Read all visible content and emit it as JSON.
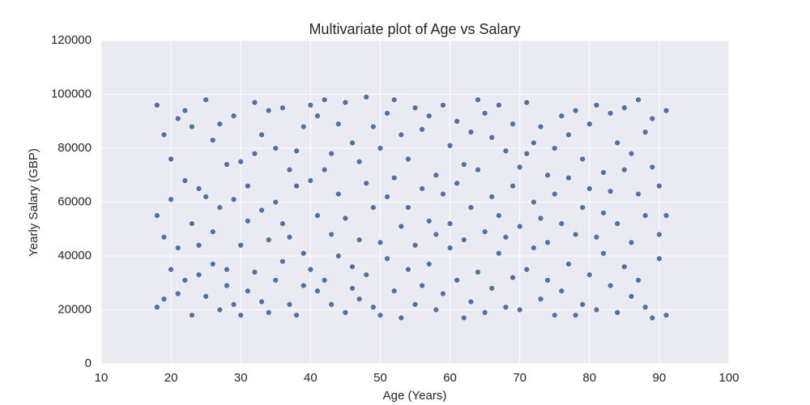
{
  "chart_data": {
    "type": "scatter",
    "title": "Multivariate plot of Age vs Salary",
    "xlabel": "Age (Years)",
    "ylabel": "Yearly Salary (GBP)",
    "xlim": [
      10,
      100
    ],
    "xticks": [
      10,
      20,
      30,
      40,
      50,
      60,
      70,
      80,
      90,
      100
    ],
    "ylim": [
      0,
      120000
    ],
    "yticks": [
      0,
      20000,
      40000,
      60000,
      80000,
      100000,
      120000
    ],
    "grid": true,
    "color": "#4c72b0",
    "x": [
      18,
      18,
      18,
      19,
      19,
      19,
      20,
      20,
      20,
      21,
      21,
      21,
      22,
      22,
      22,
      23,
      23,
      23,
      24,
      24,
      24,
      25,
      25,
      25,
      26,
      26,
      26,
      27,
      27,
      27,
      28,
      28,
      28,
      29,
      29,
      29,
      30,
      30,
      30,
      31,
      31,
      31,
      32,
      32,
      32,
      33,
      33,
      33,
      34,
      34,
      34,
      35,
      35,
      35,
      36,
      36,
      36,
      37,
      37,
      37,
      38,
      38,
      38,
      39,
      39,
      39,
      40,
      40,
      40,
      41,
      41,
      41,
      42,
      42,
      42,
      43,
      43,
      43,
      44,
      44,
      44,
      45,
      45,
      45,
      46,
      46,
      46,
      47,
      47,
      47,
      48,
      48,
      48,
      49,
      49,
      49,
      50,
      50,
      50,
      51,
      51,
      51,
      52,
      52,
      52,
      53,
      53,
      53,
      54,
      54,
      54,
      55,
      55,
      55,
      56,
      56,
      56,
      57,
      57,
      57,
      58,
      58,
      58,
      59,
      59,
      59,
      60,
      60,
      60,
      61,
      61,
      61,
      62,
      62,
      62,
      63,
      63,
      63,
      64,
      64,
      64,
      65,
      65,
      65,
      66,
      66,
      66,
      67,
      67,
      67,
      68,
      68,
      68,
      69,
      69,
      69,
      70,
      70,
      70,
      71,
      71,
      71,
      72,
      72,
      72,
      73,
      73,
      73,
      74,
      74,
      74,
      75,
      75,
      75,
      76,
      76,
      76,
      77,
      77,
      77,
      78,
      78,
      78,
      79,
      79,
      79,
      80,
      80,
      80,
      81,
      81,
      81,
      82,
      82,
      82,
      83,
      83,
      83,
      84,
      84,
      84,
      85,
      85,
      85,
      86,
      86,
      86,
      87,
      87,
      87,
      88,
      88,
      88,
      89,
      89,
      89,
      90,
      90,
      90,
      91,
      91,
      91
    ],
    "y": [
      96000,
      55000,
      21000,
      85000,
      47000,
      24000,
      76000,
      61000,
      35000,
      91000,
      43000,
      26000,
      94000,
      68000,
      31000,
      88000,
      52000,
      18000,
      65000,
      44000,
      33000,
      98000,
      62000,
      25000,
      83000,
      49000,
      37000,
      89000,
      58000,
      20000,
      74000,
      35000,
      29000,
      92000,
      61000,
      22000,
      75000,
      44000,
      18000,
      66000,
      53000,
      27000,
      97000,
      78000,
      34000,
      85000,
      57000,
      23000,
      94000,
      46000,
      19000,
      80000,
      60000,
      31000,
      95000,
      52000,
      38000,
      72000,
      47000,
      22000,
      79000,
      66000,
      18000,
      88000,
      41000,
      29000,
      96000,
      68000,
      35000,
      92000,
      55000,
      27000,
      98000,
      72000,
      31000,
      78000,
      48000,
      22000,
      89000,
      63000,
      40000,
      97000,
      54000,
      19000,
      82000,
      36000,
      28000,
      75000,
      46000,
      24000,
      99000,
      67000,
      33000,
      88000,
      58000,
      21000,
      80000,
      45000,
      18000,
      93000,
      62000,
      39000,
      98000,
      69000,
      27000,
      85000,
      51000,
      17000,
      76000,
      58000,
      35000,
      95000,
      44000,
      22000,
      87000,
      65000,
      29000,
      92000,
      53000,
      37000,
      70000,
      48000,
      20000,
      96000,
      63000,
      26000,
      81000,
      52000,
      43000,
      90000,
      67000,
      31000,
      74000,
      46000,
      17000,
      86000,
      58000,
      23000,
      98000,
      72000,
      34000,
      93000,
      49000,
      19000,
      84000,
      62000,
      28000,
      96000,
      55000,
      41000,
      79000,
      47000,
      21000,
      89000,
      66000,
      32000,
      73000,
      51000,
      20000,
      97000,
      78000,
      35000,
      82000,
      60000,
      43000,
      88000,
      54000,
      24000,
      70000,
      45000,
      31000,
      80000,
      63000,
      18000,
      92000,
      52000,
      27000,
      85000,
      69000,
      37000,
      94000,
      48000,
      18000,
      76000,
      58000,
      22000,
      89000,
      65000,
      33000,
      96000,
      47000,
      20000,
      71000,
      56000,
      41000,
      93000,
      64000,
      29000,
      82000,
      52000,
      19000,
      95000,
      72000,
      36000,
      78000,
      45000,
      25000,
      98000,
      63000,
      31000,
      86000,
      55000,
      21000,
      91000,
      73000,
      17000,
      66000,
      48000,
      39000,
      94000,
      55000,
      18000
    ]
  }
}
